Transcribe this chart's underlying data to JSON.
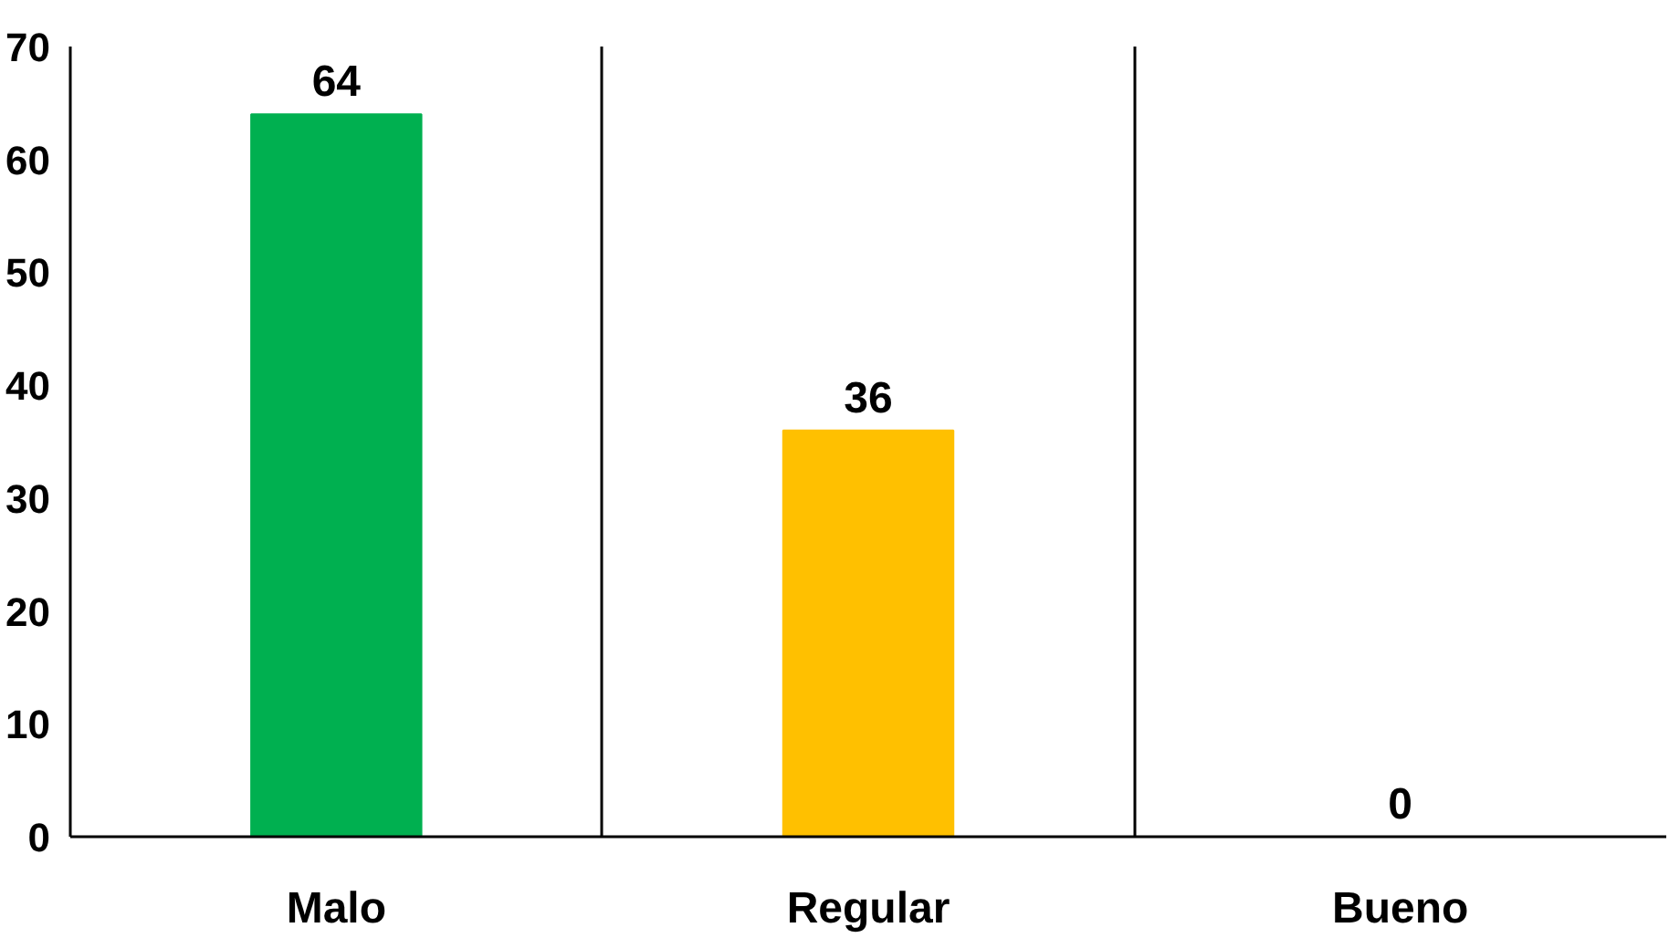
{
  "chart_data": {
    "type": "bar",
    "categories": [
      "Malo",
      "Regular",
      "Bueno"
    ],
    "values": [
      64,
      36,
      0
    ],
    "colors": [
      "#00b050",
      "#ffc000",
      "#4472c4"
    ],
    "ylim": [
      0,
      70
    ],
    "yticks": [
      0,
      10,
      20,
      30,
      40,
      50,
      60,
      70
    ],
    "grid": "x",
    "data_labels": true
  }
}
